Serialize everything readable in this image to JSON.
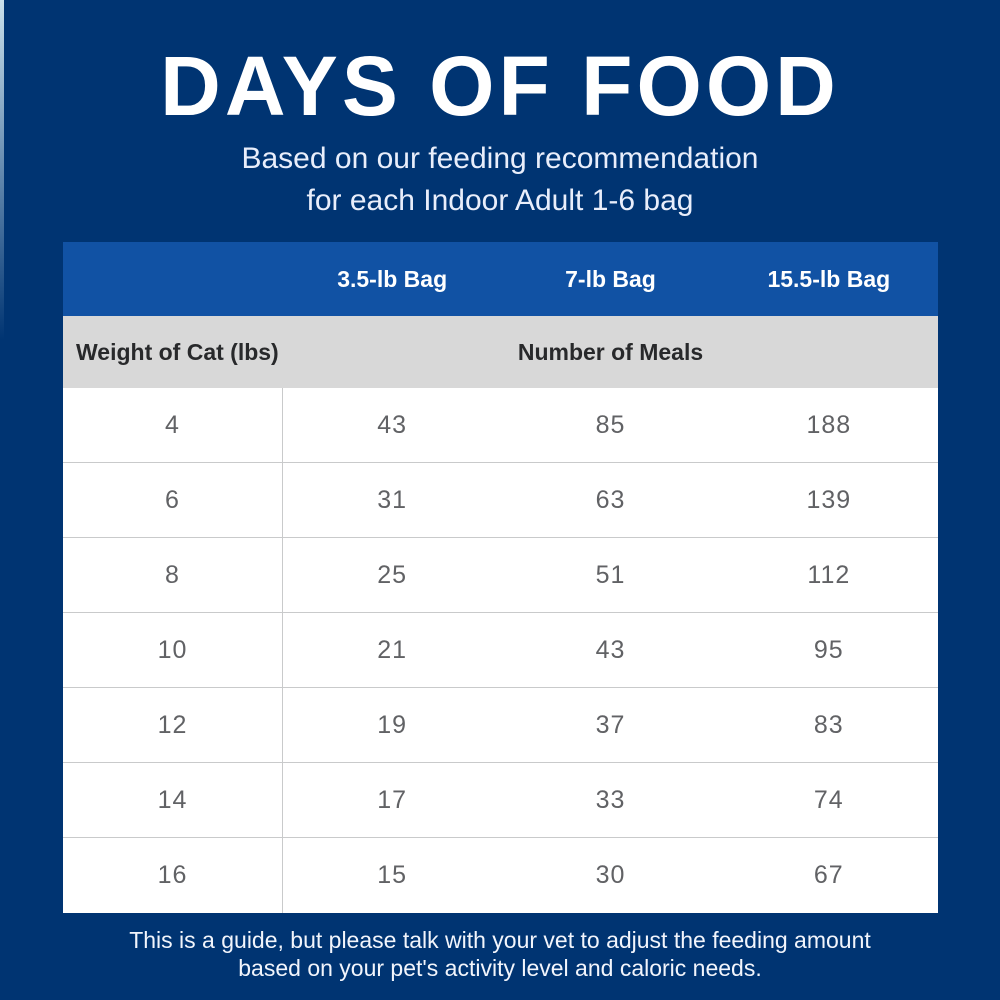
{
  "header": {
    "title": "DAYS OF FOOD",
    "subtitle_lines": [
      "Based on our feeding recommendation",
      "for each Indoor Adult 1-6 bag"
    ]
  },
  "table": {
    "bag_columns": [
      "3.5-lb Bag",
      "7-lb Bag",
      "15.5-lb Bag"
    ],
    "weight_header": "Weight of Cat (lbs)",
    "meals_header": "Number of Meals",
    "rows": [
      {
        "weight": "4",
        "meals": [
          "43",
          "85",
          "188"
        ]
      },
      {
        "weight": "6",
        "meals": [
          "31",
          "63",
          "139"
        ]
      },
      {
        "weight": "8",
        "meals": [
          "25",
          "51",
          "112"
        ]
      },
      {
        "weight": "10",
        "meals": [
          "21",
          "43",
          "95"
        ]
      },
      {
        "weight": "12",
        "meals": [
          "19",
          "37",
          "83"
        ]
      },
      {
        "weight": "14",
        "meals": [
          "17",
          "33",
          "74"
        ]
      },
      {
        "weight": "16",
        "meals": [
          "15",
          "30",
          "67"
        ]
      }
    ]
  },
  "footer": {
    "lines": [
      "This is a guide, but please talk with your vet to adjust the feeding amount",
      "based on your pet's activity level and caloric needs."
    ]
  },
  "colors": {
    "background_navy": "#003472",
    "header_blue": "#1152a4",
    "subheader_gray": "#d8d8d8",
    "row_white": "#ffffff",
    "title_text": "#ffffff",
    "data_text": "#616265",
    "label_text": "#28292b",
    "divider": "#c9cacb"
  },
  "chart_data": {
    "type": "table",
    "title": "DAYS OF FOOD",
    "subtitle": "Based on our feeding recommendation for each Indoor Adult 1-6 bag",
    "columns": [
      "Weight of Cat (lbs)",
      "3.5-lb Bag",
      "7-lb Bag",
      "15.5-lb Bag"
    ],
    "section_header": "Number of Meals",
    "rows": [
      [
        4,
        43,
        85,
        188
      ],
      [
        6,
        31,
        63,
        139
      ],
      [
        8,
        25,
        51,
        112
      ],
      [
        10,
        21,
        43,
        95
      ],
      [
        12,
        19,
        37,
        83
      ],
      [
        14,
        17,
        33,
        74
      ],
      [
        16,
        15,
        30,
        67
      ]
    ],
    "footnote": "This is a guide, but please talk with your vet to adjust the feeding amount based on your pet's activity level and caloric needs."
  }
}
